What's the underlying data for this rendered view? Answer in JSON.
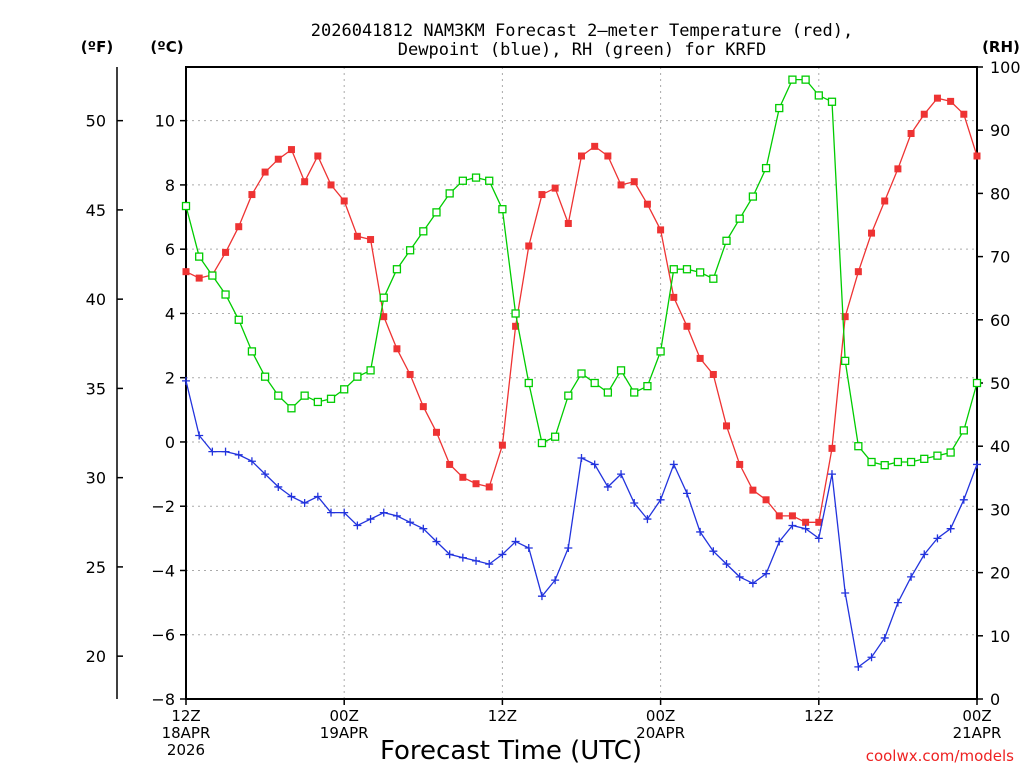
{
  "chart_data": {
    "type": "line",
    "title_line1": "2026041812 NAM3KM Forecast 2–meter Temperature (red),",
    "title_line2": "Dewpoint (blue), RH (green) for KRFD",
    "xlabel": "Forecast Time (UTC)",
    "watermark": "coolwx.com/models",
    "unit_f": "(ºF)",
    "unit_c": "(ºC)",
    "unit_rh": "(RH)",
    "x_unit": "forecast hour",
    "xlim": [
      0,
      60
    ],
    "ylim_c": [
      -8,
      11.67
    ],
    "ylim_rh": [
      0,
      100
    ],
    "c_ticks": [
      -8,
      -6,
      -4,
      -2,
      0,
      2,
      4,
      6,
      8,
      10
    ],
    "c_tick_labels": [
      "−8",
      "−6",
      "−4",
      "−2",
      "0",
      "2",
      "4",
      "6",
      "8",
      "10"
    ],
    "f_ticks": [
      20,
      25,
      30,
      35,
      40,
      45,
      50
    ],
    "rh_ticks": [
      0,
      10,
      20,
      30,
      40,
      50,
      60,
      70,
      80,
      90,
      100
    ],
    "x_ticks": [
      {
        "hour": 0,
        "lines": [
          "12Z",
          "18APR",
          "2026"
        ]
      },
      {
        "hour": 12,
        "lines": [
          "00Z",
          "19APR"
        ]
      },
      {
        "hour": 24,
        "lines": [
          "12Z"
        ]
      },
      {
        "hour": 36,
        "lines": [
          "00Z",
          "20APR"
        ]
      },
      {
        "hour": 48,
        "lines": [
          "12Z"
        ]
      },
      {
        "hour": 60,
        "lines": [
          "00Z",
          "21APR"
        ]
      }
    ],
    "series": [
      {
        "name": "Temperature",
        "unit": "C",
        "color": "#ee3333",
        "marker": "filled-square",
        "points": [
          [
            0,
            5.3
          ],
          [
            1,
            5.1
          ],
          [
            2,
            5.2
          ],
          [
            3,
            5.9
          ],
          [
            4,
            6.7
          ],
          [
            5,
            7.7
          ],
          [
            6,
            8.4
          ],
          [
            7,
            8.8
          ],
          [
            8,
            9.1
          ],
          [
            9,
            8.1
          ],
          [
            10,
            8.9
          ],
          [
            11,
            8.0
          ],
          [
            12,
            7.5
          ],
          [
            13,
            6.4
          ],
          [
            14,
            6.3
          ],
          [
            15,
            3.9
          ],
          [
            16,
            2.9
          ],
          [
            17,
            2.1
          ],
          [
            18,
            1.1
          ],
          [
            19,
            0.3
          ],
          [
            20,
            -0.7
          ],
          [
            21,
            -1.1
          ],
          [
            22,
            -1.3
          ],
          [
            23,
            -1.4
          ],
          [
            24,
            -0.1
          ],
          [
            25,
            3.6
          ],
          [
            26,
            6.1
          ],
          [
            27,
            7.7
          ],
          [
            28,
            7.9
          ],
          [
            29,
            6.8
          ],
          [
            30,
            8.9
          ],
          [
            31,
            9.2
          ],
          [
            32,
            8.9
          ],
          [
            33,
            8.0
          ],
          [
            34,
            8.1
          ],
          [
            35,
            7.4
          ],
          [
            36,
            6.6
          ],
          [
            37,
            4.5
          ],
          [
            38,
            3.6
          ],
          [
            39,
            2.6
          ],
          [
            40,
            2.1
          ],
          [
            41,
            0.5
          ],
          [
            42,
            -0.7
          ],
          [
            43,
            -1.5
          ],
          [
            44,
            -1.8
          ],
          [
            45,
            -2.3
          ],
          [
            46,
            -2.3
          ],
          [
            47,
            -2.5
          ],
          [
            48,
            -2.5
          ],
          [
            49,
            -0.2
          ],
          [
            50,
            3.9
          ],
          [
            51,
            5.3
          ],
          [
            52,
            6.5
          ],
          [
            53,
            7.5
          ],
          [
            54,
            8.5
          ],
          [
            55,
            9.6
          ],
          [
            56,
            10.2
          ],
          [
            57,
            10.7
          ],
          [
            58,
            10.6
          ],
          [
            59,
            10.2
          ],
          [
            60,
            8.9
          ]
        ]
      },
      {
        "name": "Dewpoint",
        "unit": "C",
        "color": "#2233dd",
        "marker": "plus",
        "points": [
          [
            0,
            1.9
          ],
          [
            1,
            0.2
          ],
          [
            2,
            -0.3
          ],
          [
            3,
            -0.3
          ],
          [
            4,
            -0.4
          ],
          [
            5,
            -0.6
          ],
          [
            6,
            -1.0
          ],
          [
            7,
            -1.4
          ],
          [
            8,
            -1.7
          ],
          [
            9,
            -1.9
          ],
          [
            10,
            -1.7
          ],
          [
            11,
            -2.2
          ],
          [
            12,
            -2.2
          ],
          [
            13,
            -2.6
          ],
          [
            14,
            -2.4
          ],
          [
            15,
            -2.2
          ],
          [
            16,
            -2.3
          ],
          [
            17,
            -2.5
          ],
          [
            18,
            -2.7
          ],
          [
            19,
            -3.1
          ],
          [
            20,
            -3.5
          ],
          [
            21,
            -3.6
          ],
          [
            22,
            -3.7
          ],
          [
            23,
            -3.8
          ],
          [
            24,
            -3.5
          ],
          [
            25,
            -3.1
          ],
          [
            26,
            -3.3
          ],
          [
            27,
            -4.8
          ],
          [
            28,
            -4.3
          ],
          [
            29,
            -3.3
          ],
          [
            30,
            -0.5
          ],
          [
            31,
            -0.7
          ],
          [
            32,
            -1.4
          ],
          [
            33,
            -1.0
          ],
          [
            34,
            -1.9
          ],
          [
            35,
            -2.4
          ],
          [
            36,
            -1.8
          ],
          [
            37,
            -0.7
          ],
          [
            38,
            -1.6
          ],
          [
            39,
            -2.8
          ],
          [
            40,
            -3.4
          ],
          [
            41,
            -3.8
          ],
          [
            42,
            -4.2
          ],
          [
            43,
            -4.4
          ],
          [
            44,
            -4.1
          ],
          [
            45,
            -3.1
          ],
          [
            46,
            -2.6
          ],
          [
            47,
            -2.7
          ],
          [
            48,
            -3.0
          ],
          [
            49,
            -1.0
          ],
          [
            50,
            -4.7
          ],
          [
            51,
            -7.0
          ],
          [
            52,
            -6.7
          ],
          [
            53,
            -6.1
          ],
          [
            54,
            -5.0
          ],
          [
            55,
            -4.2
          ],
          [
            56,
            -3.5
          ],
          [
            57,
            -3.0
          ],
          [
            58,
            -2.7
          ],
          [
            59,
            -1.8
          ],
          [
            60,
            -0.7
          ]
        ]
      },
      {
        "name": "RH",
        "unit": "%",
        "color": "#00cc00",
        "marker": "open-square",
        "points": [
          [
            0,
            78
          ],
          [
            1,
            70
          ],
          [
            2,
            67
          ],
          [
            3,
            64
          ],
          [
            4,
            60
          ],
          [
            5,
            55
          ],
          [
            6,
            51
          ],
          [
            7,
            48
          ],
          [
            8,
            46
          ],
          [
            9,
            48
          ],
          [
            10,
            47
          ],
          [
            11,
            47.5
          ],
          [
            12,
            49
          ],
          [
            13,
            51
          ],
          [
            14,
            52
          ],
          [
            15,
            63.5
          ],
          [
            16,
            68
          ],
          [
            17,
            71
          ],
          [
            18,
            74
          ],
          [
            19,
            77
          ],
          [
            20,
            80
          ],
          [
            21,
            82
          ],
          [
            22,
            82.5
          ],
          [
            23,
            82
          ],
          [
            24,
            77.5
          ],
          [
            25,
            61
          ],
          [
            26,
            50
          ],
          [
            27,
            40.5
          ],
          [
            28,
            41.5
          ],
          [
            29,
            48
          ],
          [
            30,
            51.5
          ],
          [
            31,
            50
          ],
          [
            32,
            48.5
          ],
          [
            33,
            52
          ],
          [
            34,
            48.5
          ],
          [
            35,
            49.5
          ],
          [
            36,
            55
          ],
          [
            37,
            68
          ],
          [
            38,
            68
          ],
          [
            39,
            67.5
          ],
          [
            40,
            66.5
          ],
          [
            41,
            72.5
          ],
          [
            42,
            76
          ],
          [
            43,
            79.5
          ],
          [
            44,
            84
          ],
          [
            45,
            93.5
          ],
          [
            46,
            98
          ],
          [
            47,
            98
          ],
          [
            48,
            95.5
          ],
          [
            49,
            94.5
          ],
          [
            50,
            53.5
          ],
          [
            51,
            40
          ],
          [
            52,
            37.5
          ],
          [
            53,
            37
          ],
          [
            54,
            37.5
          ],
          [
            55,
            37.5
          ],
          [
            56,
            38
          ],
          [
            57,
            38.5
          ],
          [
            58,
            39
          ],
          [
            59,
            42.5
          ],
          [
            60,
            50
          ]
        ]
      }
    ]
  }
}
